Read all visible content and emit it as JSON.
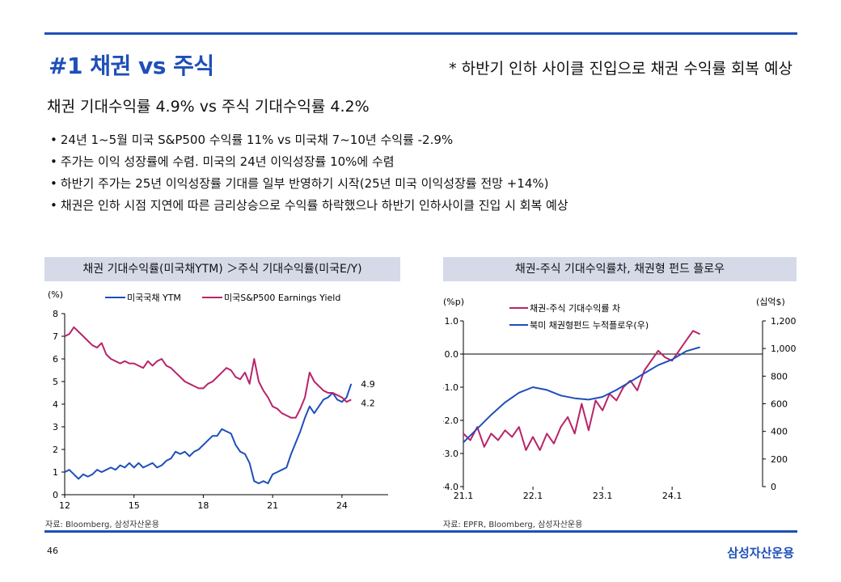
{
  "header": {
    "title": "#1 채권 vs 주식",
    "note": "* 하반기 인하 사이클 진입으로 채권 수익률 회복 예상"
  },
  "subtitle": "채권 기대수익률 4.9% vs 주식 기대수익률 4.2%",
  "bullets": [
    "24년 1~5월 미국 S&P500 수익률 11% vs 미국채 7~10년 수익률 -2.9%",
    "주가는 이익 성장률에 수렴. 미국의 24년 이익성장률 10%에 수렴",
    "하반기 주가는 25년 이익성장률 기대를 일부 반영하기 시작(25년 미국 이익성장률 전망 +14%)",
    "채권은 인하 시점 지연에 따른 금리상승으로 수익률 하락했으나 하반기 인하사이클 진입 시 회복 예상"
  ],
  "colors": {
    "blue": "#1f4fb8",
    "magenta": "#b8246a",
    "header_bg": "#d6d9e8"
  },
  "footer": {
    "page": "46",
    "brand": "삼성자산운용"
  },
  "chart_data": [
    {
      "type": "line",
      "title": "채권 기대수익률(미국채YTM) ＞주식 기대수익률(미국E/Y)",
      "ylabel": "(%)",
      "ylim": [
        0,
        8
      ],
      "yticks": [
        "0",
        "1",
        "2",
        "3",
        "4",
        "5",
        "6",
        "7",
        "8"
      ],
      "xlim": [
        12,
        25.3
      ],
      "xticks": [
        "12",
        "15",
        "18",
        "21",
        "24"
      ],
      "end_labels": [
        "4.9",
        "4.2"
      ],
      "source": "자료: Bloomberg, 삼성자산운용",
      "series": [
        {
          "name": "미국국채 YTM",
          "color": "#1f4fb8",
          "x": [
            12.0,
            12.2,
            12.4,
            12.6,
            12.8,
            13.0,
            13.2,
            13.4,
            13.6,
            13.8,
            14.0,
            14.2,
            14.4,
            14.6,
            14.8,
            15.0,
            15.2,
            15.4,
            15.6,
            15.8,
            16.0,
            16.2,
            16.4,
            16.6,
            16.8,
            17.0,
            17.2,
            17.4,
            17.6,
            17.8,
            18.0,
            18.2,
            18.4,
            18.6,
            18.8,
            19.0,
            19.2,
            19.4,
            19.6,
            19.8,
            20.0,
            20.2,
            20.4,
            20.6,
            20.8,
            21.0,
            21.2,
            21.4,
            21.6,
            21.8,
            22.0,
            22.2,
            22.4,
            22.6,
            22.8,
            23.0,
            23.2,
            23.4,
            23.6,
            23.8,
            24.0,
            24.2,
            24.4
          ],
          "values": [
            1.0,
            1.1,
            0.9,
            0.7,
            0.9,
            0.8,
            0.9,
            1.1,
            1.0,
            1.1,
            1.2,
            1.1,
            1.3,
            1.2,
            1.4,
            1.2,
            1.4,
            1.2,
            1.3,
            1.4,
            1.2,
            1.3,
            1.5,
            1.6,
            1.9,
            1.8,
            1.9,
            1.7,
            1.9,
            2.0,
            2.2,
            2.4,
            2.6,
            2.6,
            2.9,
            2.8,
            2.7,
            2.2,
            1.9,
            1.8,
            1.4,
            0.6,
            0.5,
            0.6,
            0.5,
            0.9,
            1.0,
            1.1,
            1.2,
            1.8,
            2.3,
            2.8,
            3.4,
            3.9,
            3.6,
            3.9,
            4.2,
            4.3,
            4.5,
            4.2,
            4.1,
            4.3,
            4.9
          ]
        },
        {
          "name": "미국S&P500 Earnings Yield",
          "color": "#b8246a",
          "x": [
            12.0,
            12.2,
            12.4,
            12.6,
            12.8,
            13.0,
            13.2,
            13.4,
            13.6,
            13.8,
            14.0,
            14.2,
            14.4,
            14.6,
            14.8,
            15.0,
            15.2,
            15.4,
            15.6,
            15.8,
            16.0,
            16.2,
            16.4,
            16.6,
            16.8,
            17.0,
            17.2,
            17.4,
            17.6,
            17.8,
            18.0,
            18.2,
            18.4,
            18.6,
            18.8,
            19.0,
            19.2,
            19.4,
            19.6,
            19.8,
            20.0,
            20.2,
            20.4,
            20.6,
            20.8,
            21.0,
            21.2,
            21.4,
            21.6,
            21.8,
            22.0,
            22.2,
            22.4,
            22.6,
            22.8,
            23.0,
            23.2,
            23.4,
            23.6,
            23.8,
            24.0,
            24.2,
            24.4
          ],
          "values": [
            7.0,
            7.1,
            7.4,
            7.2,
            7.0,
            6.8,
            6.6,
            6.5,
            6.7,
            6.2,
            6.0,
            5.9,
            5.8,
            5.9,
            5.8,
            5.8,
            5.7,
            5.6,
            5.9,
            5.7,
            5.9,
            6.0,
            5.7,
            5.6,
            5.4,
            5.2,
            5.0,
            4.9,
            4.8,
            4.7,
            4.7,
            4.9,
            5.0,
            5.2,
            5.4,
            5.6,
            5.5,
            5.2,
            5.1,
            5.4,
            4.9,
            6.0,
            5.0,
            4.6,
            4.3,
            3.9,
            3.8,
            3.6,
            3.5,
            3.4,
            3.4,
            3.8,
            4.3,
            5.4,
            5.0,
            4.8,
            4.6,
            4.5,
            4.5,
            4.4,
            4.3,
            4.1,
            4.2
          ]
        }
      ]
    },
    {
      "type": "line",
      "title": "채권-주식 기대수익률차, 채권형 펀드 플로우",
      "ylabel": "(%p)",
      "y2label": "(십억$)",
      "ylim": [
        -4.0,
        1.0
      ],
      "yticks": [
        "1.0",
        "0.0",
        "-1.0",
        "-2.0",
        "-3.0",
        "-4.0"
      ],
      "y2lim": [
        0,
        1200
      ],
      "y2ticks": [
        "1,200",
        "1,000",
        "800",
        "600",
        "400",
        "200",
        "0"
      ],
      "xlim": [
        2021.0,
        2025.3
      ],
      "xticks": [
        "21.1",
        "22.1",
        "23.1",
        "24.1"
      ],
      "source": "자료: EPFR, Bloomberg, 삼성자산운용",
      "series": [
        {
          "name": "채권-주식 기대수익률 차",
          "color": "#b8246a",
          "axis": "left",
          "x": [
            2021.0,
            2021.1,
            2021.2,
            2021.3,
            2021.4,
            2021.5,
            2021.6,
            2021.7,
            2021.8,
            2021.9,
            2022.0,
            2022.1,
            2022.2,
            2022.3,
            2022.4,
            2022.5,
            2022.6,
            2022.7,
            2022.8,
            2022.9,
            2023.0,
            2023.1,
            2023.2,
            2023.3,
            2023.4,
            2023.5,
            2023.6,
            2023.7,
            2023.8,
            2023.9,
            2024.0,
            2024.1,
            2024.2,
            2024.3,
            2024.4
          ],
          "values": [
            -2.4,
            -2.6,
            -2.2,
            -2.8,
            -2.4,
            -2.6,
            -2.3,
            -2.5,
            -2.2,
            -2.9,
            -2.5,
            -2.9,
            -2.4,
            -2.7,
            -2.2,
            -1.9,
            -2.4,
            -1.5,
            -2.3,
            -1.4,
            -1.7,
            -1.2,
            -1.4,
            -1.0,
            -0.8,
            -1.1,
            -0.5,
            -0.2,
            0.1,
            -0.1,
            -0.2,
            0.1,
            0.4,
            0.7,
            0.6
          ]
        },
        {
          "name": "북미 채권형펀드 누적플로우(우)",
          "color": "#1f4fb8",
          "axis": "right",
          "x": [
            2021.0,
            2021.2,
            2021.4,
            2021.6,
            2021.8,
            2022.0,
            2022.2,
            2022.4,
            2022.6,
            2022.8,
            2023.0,
            2023.2,
            2023.4,
            2023.6,
            2023.8,
            2024.0,
            2024.2,
            2024.4
          ],
          "values": [
            320,
            420,
            520,
            610,
            680,
            720,
            700,
            660,
            640,
            630,
            650,
            700,
            760,
            820,
            880,
            920,
            980,
            1010
          ]
        }
      ]
    }
  ]
}
